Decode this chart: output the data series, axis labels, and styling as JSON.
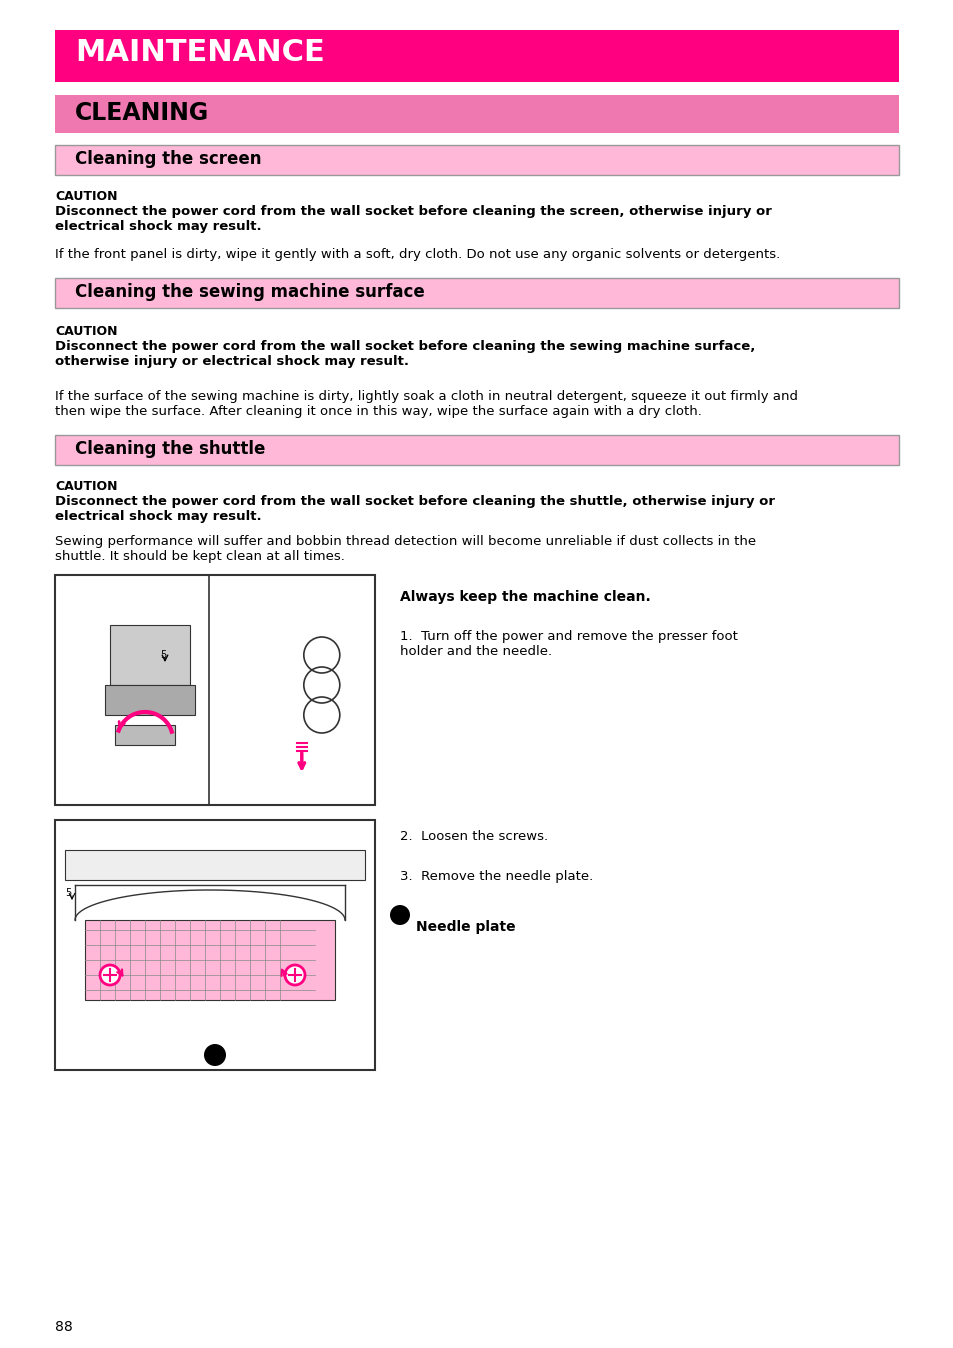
{
  "bg_color": "#ffffff",
  "maintenance_bar_color": "#FF0080",
  "cleaning_bar_color": "#F078B0",
  "subheader_bg_color": "#FFB8D8",
  "subheader_border_color": "#888888",
  "maintenance_text": "MAINTENANCE",
  "maintenance_text_color": "#ffffff",
  "cleaning_text": "CLEANING",
  "cleaning_text_color": "#000000",
  "screen_header": "Cleaning the screen",
  "surface_header": "Cleaning the sewing machine surface",
  "shuttle_header": "Cleaning the shuttle",
  "caution_label": "CAUTION",
  "caution1_bold": "Disconnect the power cord from the wall socket before cleaning the screen, otherwise injury or\nelectrical shock may result.",
  "caution1_normal": "If the front panel is dirty, wipe it gently with a soft, dry cloth. Do not use any organic solvents or detergents.",
  "caution2_bold": "Disconnect the power cord from the wall socket before cleaning the sewing machine surface,\notherwise injury or electrical shock may result.",
  "caution2_normal": "If the surface of the sewing machine is dirty, lightly soak a cloth in neutral detergent, squeeze it out firmly and\nthen wipe the surface. After cleaning it once in this way, wipe the surface again with a dry cloth.",
  "caution3_bold": "Disconnect the power cord from the wall socket before cleaning the shuttle, otherwise injury or\nelectrical shock may result.",
  "caution3_normal": "Sewing performance will suffer and bobbin thread detection will become unreliable if dust collects in the\nshuttle. It should be kept clean at all times.",
  "always_clean": "Always keep the machine clean.",
  "step1": "Turn off the power and remove the presser foot\nholder and the needle.",
  "step2": "Loosen the screws.",
  "step3": "Remove the needle plate.",
  "needle_plate_label": "Needle plate",
  "page_number": "88",
  "text_color": "#000000"
}
